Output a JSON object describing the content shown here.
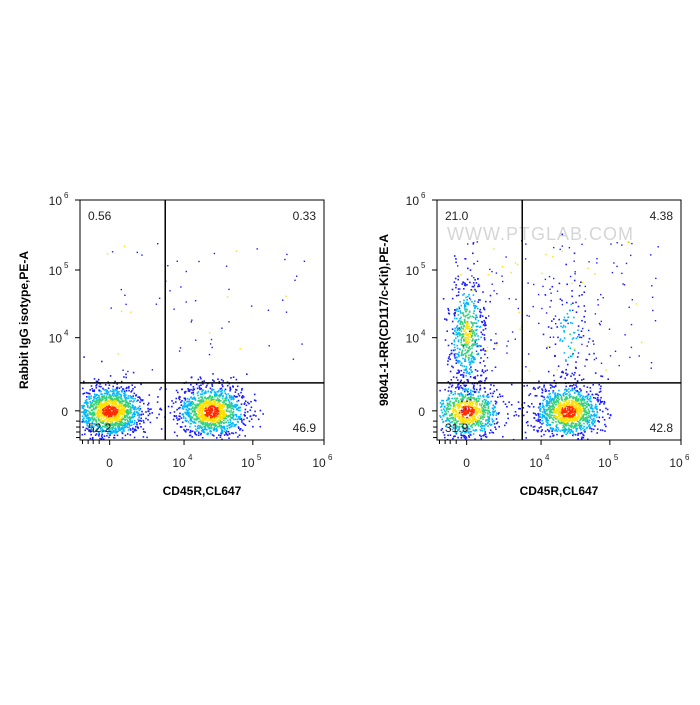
{
  "colors": {
    "density_low": "#1a1aff",
    "density_midlow": "#00b7ff",
    "density_mid": "#33d17a",
    "density_midhigh": "#ffe000",
    "density_high": "#ff2a00",
    "gate_line": "#000000",
    "frame": "#000000"
  },
  "chart_data": [
    {
      "type": "scatter",
      "subtype": "flow-cytometry-density-dot-plot",
      "title": "",
      "xlabel": "CD45R,CL647",
      "ylabel": "Rabbit IgG isotype,PE-A",
      "x_scale": "biexponential",
      "y_scale": "biexponential",
      "x_ticks": [
        {
          "base": "0",
          "exp": ""
        },
        {
          "base": "10",
          "exp": "4"
        },
        {
          "base": "10",
          "exp": "5"
        },
        {
          "base": "10",
          "exp": "6"
        }
      ],
      "y_ticks": [
        {
          "base": "0",
          "exp": ""
        },
        {
          "base": "10",
          "exp": "4"
        },
        {
          "base": "10",
          "exp": "5"
        },
        {
          "base": "10",
          "exp": "6"
        }
      ],
      "gate": {
        "x": 5000,
        "y": 1500
      },
      "quadrants": [
        {
          "position": "upper-left",
          "percent": "0.56"
        },
        {
          "position": "upper-right",
          "percent": "0.33"
        },
        {
          "position": "lower-left",
          "percent": "52.2"
        },
        {
          "position": "lower-right",
          "percent": "46.9"
        }
      ],
      "watermark": "",
      "populations": [
        {
          "x_center": 0,
          "y_center": 0,
          "weight": 0.522,
          "color_level": "high"
        },
        {
          "x_center": 25000,
          "y_center": 0,
          "weight": 0.469,
          "color_level": "high"
        }
      ]
    },
    {
      "type": "scatter",
      "subtype": "flow-cytometry-density-dot-plot",
      "title": "",
      "xlabel": "CD45R,CL647",
      "ylabel": "98041-1-RR(CD117/c-Kit),PE-A",
      "x_scale": "biexponential",
      "y_scale": "biexponential",
      "x_ticks": [
        {
          "base": "0",
          "exp": ""
        },
        {
          "base": "10",
          "exp": "4"
        },
        {
          "base": "10",
          "exp": "5"
        },
        {
          "base": "10",
          "exp": "6"
        }
      ],
      "y_ticks": [
        {
          "base": "0",
          "exp": ""
        },
        {
          "base": "10",
          "exp": "4"
        },
        {
          "base": "10",
          "exp": "5"
        },
        {
          "base": "10",
          "exp": "6"
        }
      ],
      "gate": {
        "x": 5000,
        "y": 1500
      },
      "quadrants": [
        {
          "position": "upper-left",
          "percent": "21.0"
        },
        {
          "position": "upper-right",
          "percent": "4.38"
        },
        {
          "position": "lower-left",
          "percent": "31.9"
        },
        {
          "position": "lower-right",
          "percent": "42.8"
        }
      ],
      "watermark": "WWW.PTGLAB.COM",
      "populations": [
        {
          "x_center": 0,
          "y_center": 0,
          "weight": 0.319,
          "color_level": "high"
        },
        {
          "x_center": 0,
          "y_center": 12000,
          "weight": 0.21,
          "color_level": "mid"
        },
        {
          "x_center": 25000,
          "y_center": 0,
          "weight": 0.428,
          "color_level": "high"
        },
        {
          "x_center": 25000,
          "y_center": 12000,
          "weight": 0.044,
          "color_level": "low"
        }
      ]
    }
  ]
}
